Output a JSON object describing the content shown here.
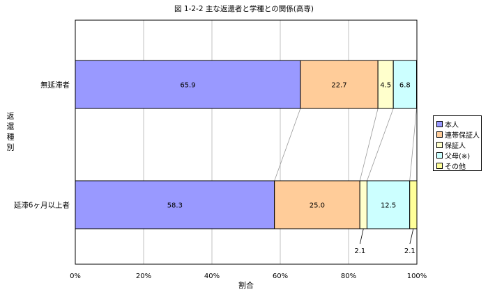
{
  "chart_data": {
    "type": "bar",
    "orientation": "horizontal",
    "stacked": "percent",
    "title": "図 1-2-2  主な返還者と学種との関係(高専)",
    "xlabel": "割合",
    "ylabel": "返還種別",
    "xlim": [
      0,
      100
    ],
    "xticks": [
      "0%",
      "20%",
      "40%",
      "60%",
      "80%",
      "100%"
    ],
    "grid": true,
    "legend_position": "right",
    "categories": [
      "無延滞者",
      "延滞6ヶ月以上者"
    ],
    "series": [
      {
        "name": "本人",
        "color": "#9999ff",
        "values": [
          65.9,
          58.3
        ]
      },
      {
        "name": "連帯保証人",
        "color": "#ffcc99",
        "values": [
          22.7,
          25.0
        ]
      },
      {
        "name": "保証人",
        "color": "#ffffcc",
        "values": [
          4.5,
          2.1
        ]
      },
      {
        "name": "父母(※)",
        "color": "#ccffff",
        "values": [
          6.8,
          12.5
        ]
      },
      {
        "name": "その他",
        "color": "#ffff99",
        "values": [
          0.0,
          2.1
        ]
      }
    ],
    "data_labels": [
      [
        "65.9",
        "22.7",
        "4.5",
        "6.8",
        ""
      ],
      [
        "58.3",
        "25.0",
        "2.1",
        "12.5",
        "2.1"
      ]
    ],
    "series_lines": true
  }
}
